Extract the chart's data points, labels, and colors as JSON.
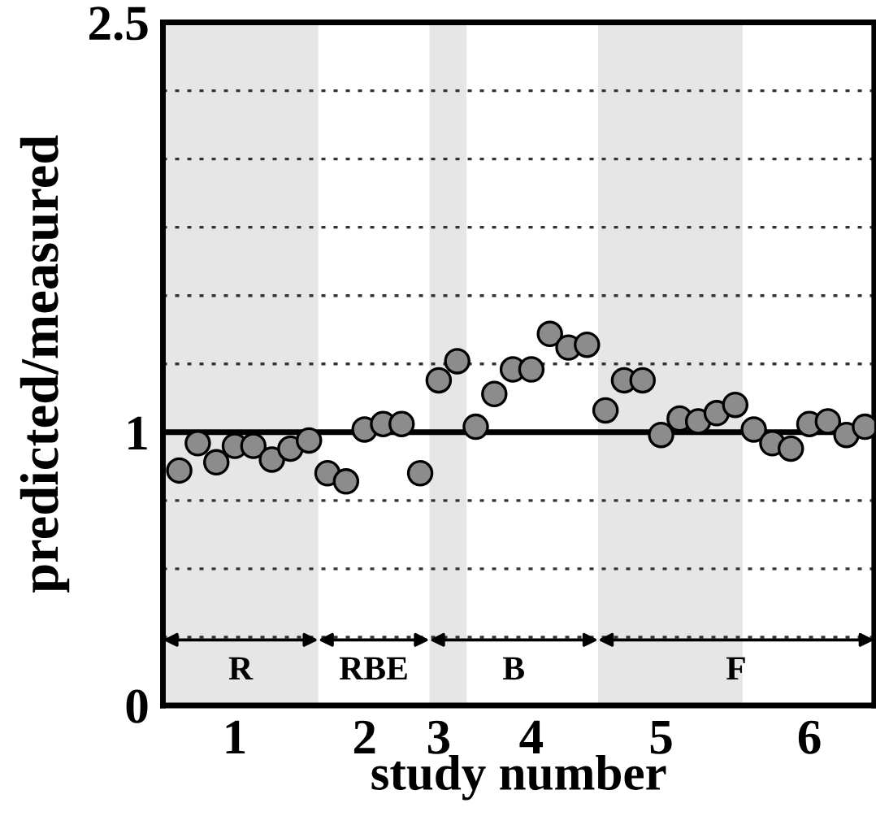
{
  "chart_data": {
    "type": "scatter",
    "xlabel": "study number",
    "ylabel": "predicted/measured",
    "categories": [
      null,
      null,
      null,
      "1",
      null,
      null,
      null,
      null,
      null,
      null,
      "2",
      null,
      null,
      null,
      "3",
      null,
      null,
      null,
      null,
      "4",
      null,
      null,
      null,
      null,
      null,
      null,
      "5",
      null,
      null,
      null,
      null,
      null,
      null,
      null,
      "6",
      null,
      null,
      null
    ],
    "series": [
      {
        "color": "#8c8c8c",
        "values": [
          0.86,
          0.96,
          0.89,
          0.95,
          0.95,
          0.9,
          0.94,
          0.97,
          0.85,
          0.82,
          1.01,
          1.03,
          1.03,
          0.85,
          1.19,
          1.26,
          1.02,
          1.14,
          1.23,
          1.23,
          1.36,
          1.31,
          1.32,
          1.08,
          1.19,
          1.19,
          0.99,
          1.05,
          1.04,
          1.07,
          1.1,
          1.01,
          0.96,
          0.94,
          1.03,
          1.04,
          0.99,
          1.02
        ]
      }
    ],
    "marker": "circle",
    "ylim": [
      0,
      2.5
    ],
    "yticks": [
      0,
      {
        "value": 0.25,
        "label": null
      },
      {
        "value": 0.5,
        "label": null
      },
      {
        "value": 0.75,
        "label": null
      },
      1,
      {
        "value": 1.25,
        "label": null
      },
      {
        "value": 1.5,
        "label": null
      },
      {
        "value": 1.75,
        "label": null
      },
      {
        "value": 2,
        "label": null
      },
      {
        "value": 2.25,
        "label": null
      },
      2.5
    ],
    "grid": "y",
    "ref_lines": [
      {
        "axis": "y",
        "value": 1,
        "color": "#000000",
        "line_style": "solid"
      }
    ],
    "annotations": [
      "R",
      "RBE",
      "B",
      "F"
    ]
  }
}
